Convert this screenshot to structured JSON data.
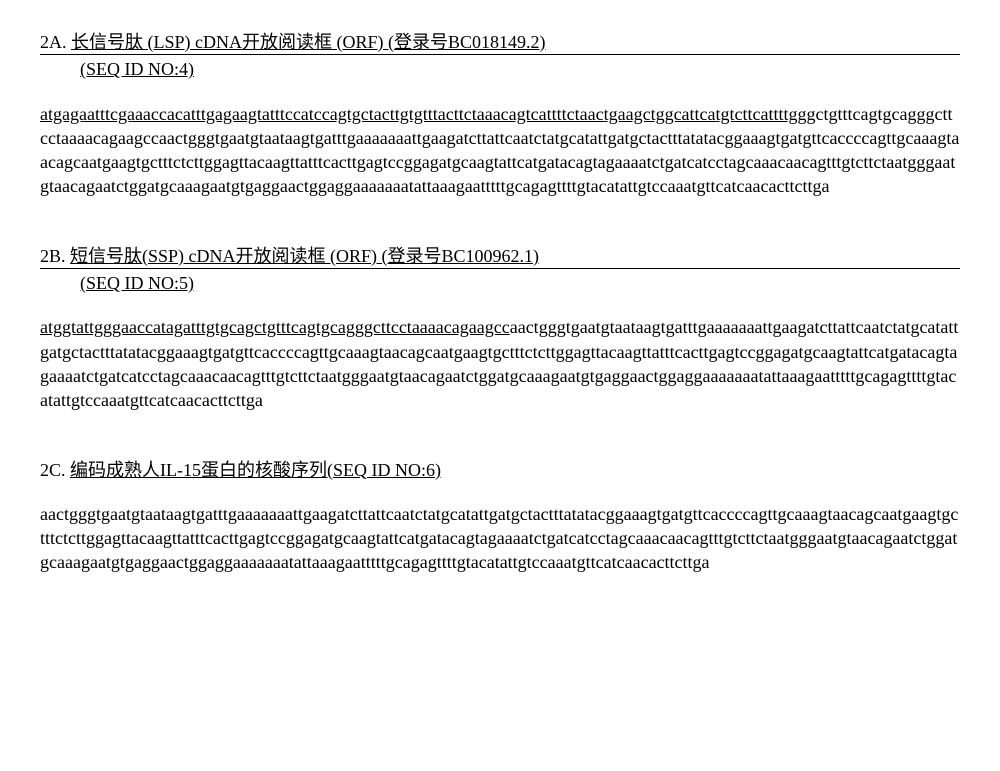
{
  "section2A": {
    "label": "2A.",
    "title": "长信号肽 (LSP) cDNA开放阅读框 (ORF) (登录号BC018149.2)",
    "seqId": "(SEQ ID NO:4)",
    "sequenceUnderlined": "atgagaatttcgaaaccacatttgagaagtatttccatccagtgctacttgtgtttacttctaaacagtcattttctaactgaagctggcattcatgtcttcattttg",
    "sequencePlain": "ggctgtttcagtgcagggcttcctaaaacagaagccaactgggtgaatgtaataagtgatttgaaaaaaattgaagatcttattcaatctatgcatattgatgctactttatatacggaaagtgatgttcaccccagttgcaaagtaacagcaatgaagtgctttctcttggagttacaagttatttcacttgagtccggagatgcaagtattcatgatacagtagaaaatctgatcatcctagcaaacaacagtttgtcttctaatgggaatgtaacagaatctggatgcaaagaatgtgaggaactggaggaaaaaaatattaaagaatttttgcagagttttgtacatattgtccaaatgttcatcaacacttcttga"
  },
  "section2B": {
    "label": "2B.",
    "title": "短信号肽(SSP) cDNA开放阅读框 (ORF) (登录号BC100962.1)",
    "seqId": "(SEQ ID NO:5)",
    "sequenceUnderlined": "atggtattgggaaccatagatttgtgcagctgtttcagtgcagggcttcctaaaacagaagcc",
    "sequencePlain": "aactgggtgaatgtaataagtgatttgaaaaaaattgaagatcttattcaatctatgcatattgatgctactttatatacggaaagtgatgttcaccccagttgcaaagtaacagcaatgaagtgctttctcttggagttacaagttatttcacttgagtccggagatgcaagtattcatgatacagtagaaaatctgatcatcctagcaaacaacagtttgtcttctaatgggaatgtaacagaatctggatgcaaagaatgtgaggaactggaggaaaaaaatattaaagaatttttgcagagttttgtacatattgtccaaatgttcatcaacacttcttga"
  },
  "section2C": {
    "label": "2C.",
    "title": "编码成熟人IL-15蛋白的核酸序列(SEQ ID NO:6)",
    "sequencePlain": "aactgggtgaatgtaataagtgatttgaaaaaaattgaagatcttattcaatctatgcatattgatgctactttatatacggaaagtgatgttcaccccagttgcaaagtaacagcaatgaagtgctttctcttggagttacaagttatttcacttgagtccggagatgcaagtattcatgatacagtagaaaatctgatcatcctagcaaacaacagtttgtcttctaatgggaatgtaacagaatctggatgcaaagaatgtgaggaactggaggaaaaaaatattaaagaatttttgcagagttttgtacatattgtccaaatgttcatcaacacttcttga"
  },
  "styling": {
    "fontFamily": "Times New Roman",
    "fontSize": 18,
    "backgroundColor": "#ffffff",
    "textColor": "#000000",
    "lineHeight": 1.35
  }
}
